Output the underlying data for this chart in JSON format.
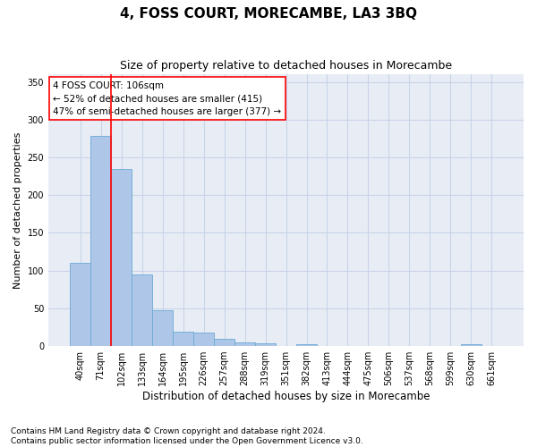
{
  "title": "4, FOSS COURT, MORECAMBE, LA3 3BQ",
  "subtitle": "Size of property relative to detached houses in Morecambe",
  "xlabel": "Distribution of detached houses by size in Morecambe",
  "ylabel": "Number of detached properties",
  "categories": [
    "40sqm",
    "71sqm",
    "102sqm",
    "133sqm",
    "164sqm",
    "195sqm",
    "226sqm",
    "257sqm",
    "288sqm",
    "319sqm",
    "351sqm",
    "382sqm",
    "413sqm",
    "444sqm",
    "475sqm",
    "506sqm",
    "537sqm",
    "568sqm",
    "599sqm",
    "630sqm",
    "661sqm"
  ],
  "values": [
    110,
    278,
    234,
    95,
    47,
    19,
    18,
    10,
    5,
    4,
    0,
    3,
    0,
    0,
    0,
    0,
    0,
    0,
    0,
    3,
    0
  ],
  "bar_color": "#aec6e8",
  "bar_edge_color": "#6aaad4",
  "vline_color": "red",
  "vline_x_index": 1.5,
  "annotation_text": "4 FOSS COURT: 106sqm\n← 52% of detached houses are smaller (415)\n47% of semi-detached houses are larger (377) →",
  "annotation_box_color": "white",
  "annotation_box_edge_color": "red",
  "ylim": [
    0,
    360
  ],
  "yticks": [
    0,
    50,
    100,
    150,
    200,
    250,
    300,
    350
  ],
  "grid_color": "#c8d4e8",
  "bg_color": "#e8edf5",
  "footer": "Contains HM Land Registry data © Crown copyright and database right 2024.\nContains public sector information licensed under the Open Government Licence v3.0.",
  "title_fontsize": 11,
  "subtitle_fontsize": 9,
  "xlabel_fontsize": 8.5,
  "ylabel_fontsize": 8,
  "annotation_fontsize": 7.5,
  "footer_fontsize": 6.5
}
